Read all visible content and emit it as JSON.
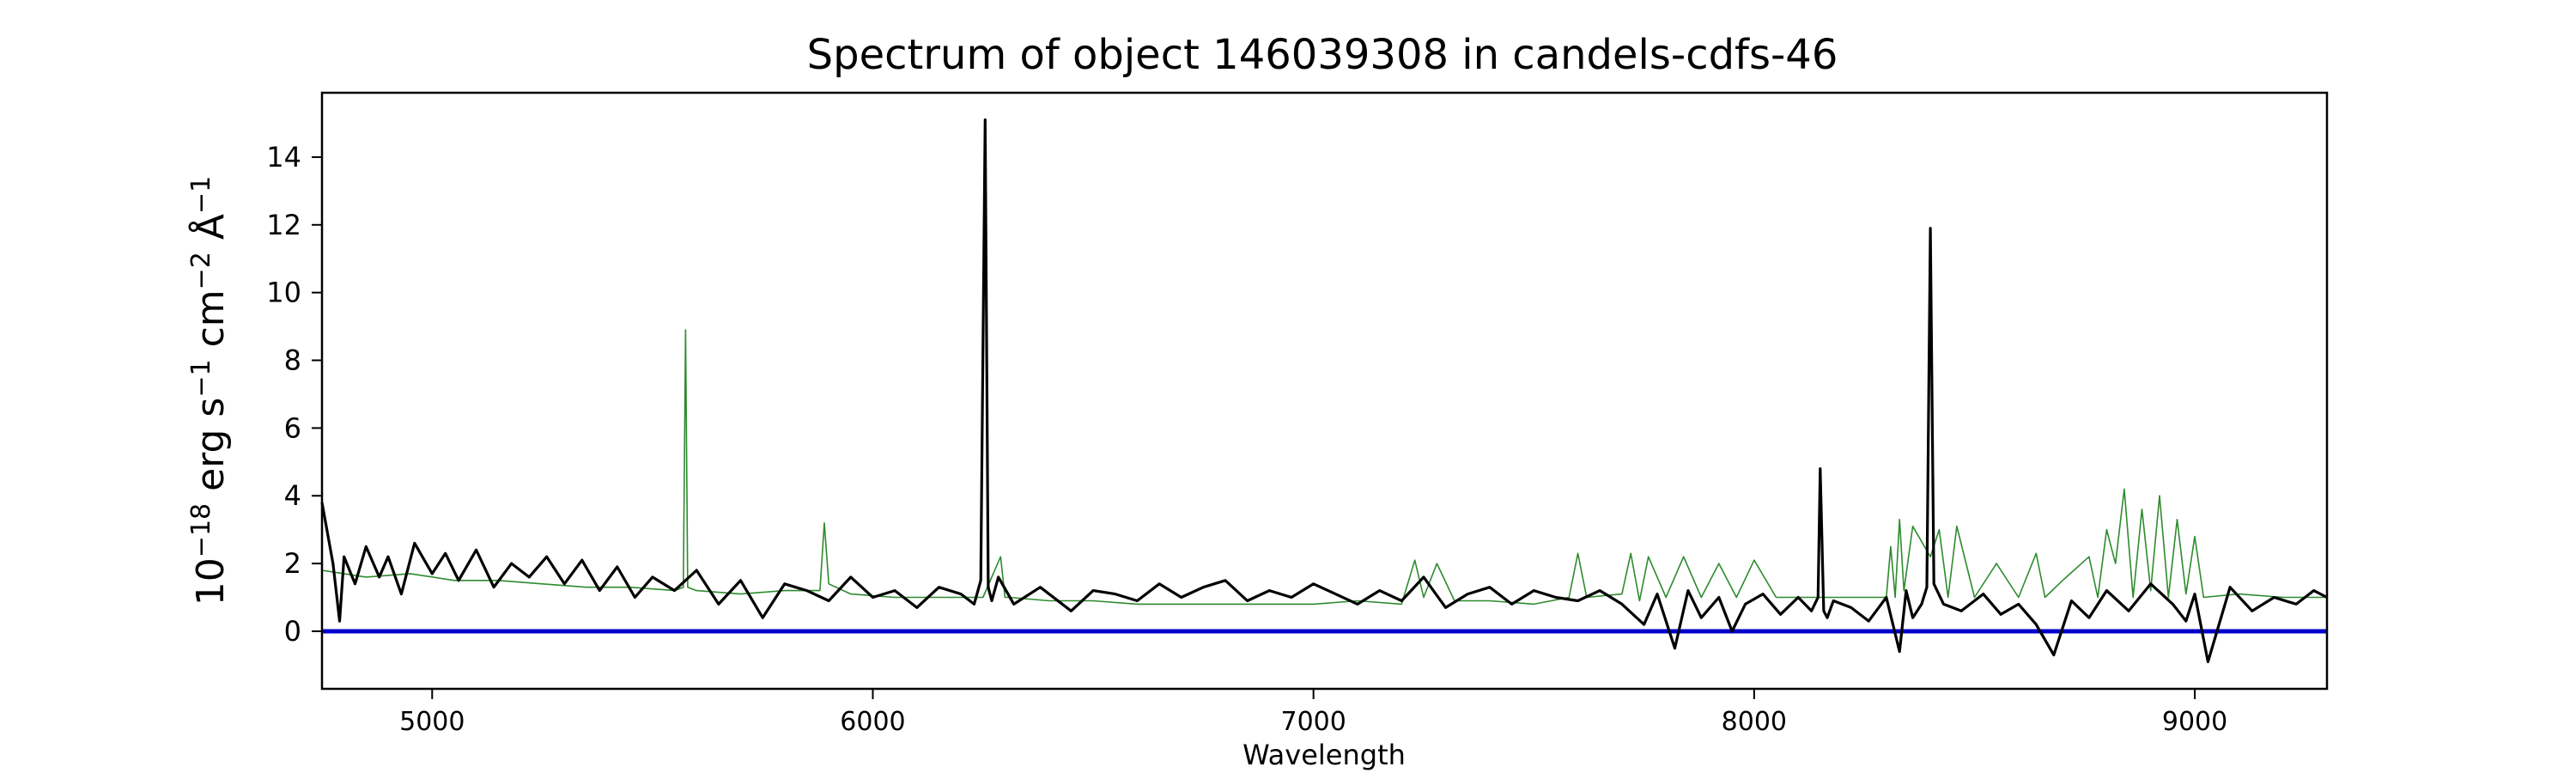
{
  "chart_data": {
    "type": "line",
    "title": "Spectrum of object 146039308 in candels-cdfs-46",
    "xlabel": "Wavelength",
    "ylabel": {
      "base": "10",
      "base_exp": "−18",
      "units": [
        {
          "text": " erg s",
          "sup": "−1"
        },
        {
          "text": " cm",
          "sup": "−2"
        },
        {
          "text": " Å",
          "sup": "−1"
        }
      ]
    },
    "xlim": [
      4750,
      9300
    ],
    "ylim": [
      -1.7,
      15.9
    ],
    "x_ticks": [
      5000,
      6000,
      7000,
      8000,
      9000
    ],
    "x_tick_labels": [
      "5000",
      "6000",
      "7000",
      "8000",
      "9000"
    ],
    "y_ticks": [
      0,
      2,
      4,
      6,
      8,
      10,
      12,
      14
    ],
    "y_tick_labels": [
      "0",
      "2",
      "4",
      "6",
      "8",
      "10",
      "12",
      "14"
    ],
    "grid": false,
    "colors": {
      "spectrum": "#000000",
      "model": "#2e8b2e",
      "zero_line": "#0000cc"
    },
    "series": [
      {
        "role": "spectrum",
        "color": "#000000",
        "x": [
          4750,
          4775,
          4790,
          4800,
          4825,
          4850,
          4880,
          4900,
          4930,
          4960,
          5000,
          5030,
          5060,
          5100,
          5140,
          5180,
          5220,
          5260,
          5300,
          5340,
          5380,
          5420,
          5460,
          5500,
          5550,
          5600,
          5650,
          5700,
          5750,
          5800,
          5850,
          5900,
          5950,
          6000,
          6050,
          6100,
          6150,
          6200,
          6230,
          6245,
          6255,
          6262,
          6270,
          6285,
          6320,
          6380,
          6450,
          6500,
          6550,
          6600,
          6650,
          6700,
          6750,
          6800,
          6850,
          6900,
          6950,
          7000,
          7050,
          7100,
          7150,
          7200,
          7250,
          7300,
          7350,
          7400,
          7450,
          7500,
          7550,
          7600,
          7650,
          7700,
          7750,
          7780,
          7820,
          7850,
          7880,
          7920,
          7950,
          7980,
          8020,
          8060,
          8100,
          8130,
          8145,
          8150,
          8158,
          8166,
          8180,
          8220,
          8260,
          8300,
          8330,
          8345,
          8360,
          8380,
          8392,
          8400,
          8408,
          8430,
          8470,
          8520,
          8560,
          8600,
          8640,
          8680,
          8720,
          8760,
          8800,
          8850,
          8900,
          8950,
          8980,
          9000,
          9030,
          9080,
          9130,
          9180,
          9230,
          9270,
          9300
        ],
        "y": [
          3.8,
          2.0,
          0.3,
          2.2,
          1.4,
          2.5,
          1.6,
          2.2,
          1.1,
          2.6,
          1.7,
          2.3,
          1.5,
          2.4,
          1.3,
          2.0,
          1.6,
          2.2,
          1.4,
          2.1,
          1.2,
          1.9,
          1.0,
          1.6,
          1.2,
          1.8,
          0.8,
          1.5,
          0.4,
          1.4,
          1.2,
          0.9,
          1.6,
          1.0,
          1.2,
          0.7,
          1.3,
          1.1,
          0.8,
          1.5,
          15.1,
          1.3,
          0.9,
          1.6,
          0.8,
          1.3,
          0.6,
          1.2,
          1.1,
          0.9,
          1.4,
          1.0,
          1.3,
          1.5,
          0.9,
          1.2,
          1.0,
          1.4,
          1.1,
          0.8,
          1.2,
          0.9,
          1.6,
          0.7,
          1.1,
          1.3,
          0.8,
          1.2,
          1.0,
          0.9,
          1.2,
          0.8,
          0.2,
          1.1,
          -0.5,
          1.2,
          0.4,
          1.0,
          0.0,
          0.8,
          1.1,
          0.5,
          1.0,
          0.6,
          1.0,
          4.8,
          0.6,
          0.4,
          0.9,
          0.7,
          0.3,
          1.0,
          -0.6,
          1.2,
          0.4,
          0.8,
          1.3,
          11.9,
          1.4,
          0.8,
          0.6,
          1.1,
          0.5,
          0.8,
          0.2,
          -0.7,
          0.9,
          0.4,
          1.2,
          0.6,
          1.4,
          0.8,
          0.3,
          1.1,
          -0.9,
          1.3,
          0.6,
          1.0,
          0.8,
          1.2,
          1.0
        ]
      },
      {
        "role": "model",
        "color": "#2e8b2e",
        "x": [
          4750,
          4850,
          4950,
          5050,
          5150,
          5250,
          5350,
          5450,
          5550,
          5570,
          5575,
          5580,
          5600,
          5700,
          5800,
          5880,
          5890,
          5900,
          5950,
          6050,
          6150,
          6250,
          6290,
          6300,
          6310,
          6400,
          6500,
          6600,
          6700,
          6800,
          6900,
          7000,
          7100,
          7200,
          7230,
          7250,
          7280,
          7320,
          7400,
          7500,
          7580,
          7600,
          7620,
          7700,
          7720,
          7740,
          7760,
          7800,
          7840,
          7880,
          7920,
          7960,
          8000,
          8050,
          8300,
          8310,
          8320,
          8330,
          8340,
          8360,
          8400,
          8420,
          8440,
          8460,
          8500,
          8550,
          8600,
          8640,
          8660,
          8700,
          8760,
          8780,
          8800,
          8820,
          8840,
          8860,
          8880,
          8900,
          8920,
          8940,
          8960,
          8980,
          9000,
          9020,
          9100,
          9200,
          9300
        ],
        "y": [
          1.8,
          1.6,
          1.7,
          1.5,
          1.5,
          1.4,
          1.3,
          1.3,
          1.2,
          1.3,
          8.9,
          1.3,
          1.2,
          1.1,
          1.2,
          1.2,
          3.2,
          1.4,
          1.1,
          1.0,
          1.0,
          1.0,
          2.2,
          1.0,
          1.0,
          0.9,
          0.9,
          0.8,
          0.8,
          0.8,
          0.8,
          0.8,
          0.9,
          0.8,
          2.1,
          1.0,
          2.0,
          0.9,
          0.9,
          0.8,
          1.0,
          2.3,
          1.0,
          1.1,
          2.3,
          0.9,
          2.2,
          1.0,
          2.2,
          1.0,
          2.0,
          1.0,
          2.1,
          1.0,
          1.0,
          2.5,
          1.0,
          3.3,
          1.2,
          3.1,
          2.2,
          3.0,
          1.0,
          3.1,
          1.0,
          2.0,
          1.0,
          2.3,
          1.0,
          1.5,
          2.2,
          1.0,
          3.0,
          2.0,
          4.2,
          1.0,
          3.6,
          1.2,
          4.0,
          1.0,
          3.3,
          1.1,
          2.8,
          1.0,
          1.1,
          1.0,
          1.0
        ]
      },
      {
        "role": "zero_line",
        "color": "#0000cc",
        "x": [
          4750,
          9300
        ],
        "y": [
          0,
          0
        ]
      }
    ]
  }
}
